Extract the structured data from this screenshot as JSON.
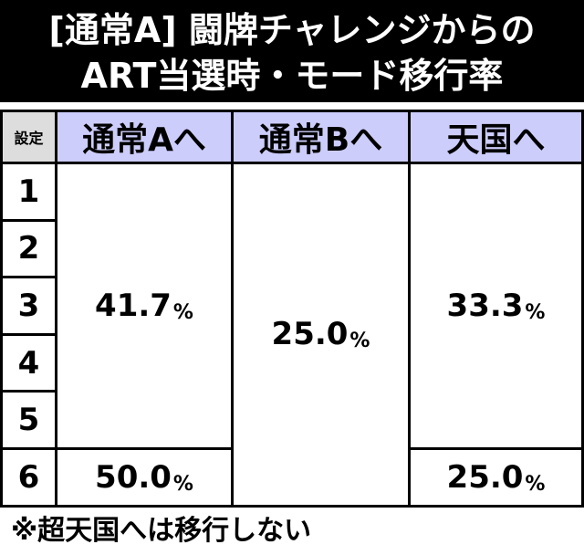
{
  "header": {
    "title_lines": [
      "[通常A] 闘牌チャレンジからの",
      "ART当選時・モード移行率"
    ]
  },
  "table": {
    "columns": [
      "設定",
      "通常Aへ",
      "通常Bへ",
      "天国へ"
    ],
    "settings": [
      "1",
      "2",
      "3",
      "4",
      "5",
      "6"
    ],
    "cells": [
      [
        {
          "number": "41.7",
          "unit": "%"
        },
        {
          "number": "50.0",
          "unit": "%"
        }
      ],
      [
        {
          "number": "25.0",
          "unit": "%"
        }
      ],
      [
        {
          "number": "33.3",
          "unit": "%"
        },
        {
          "number": "25.0",
          "unit": "%"
        }
      ]
    ]
  },
  "note": "※超天国へは移行しない"
}
